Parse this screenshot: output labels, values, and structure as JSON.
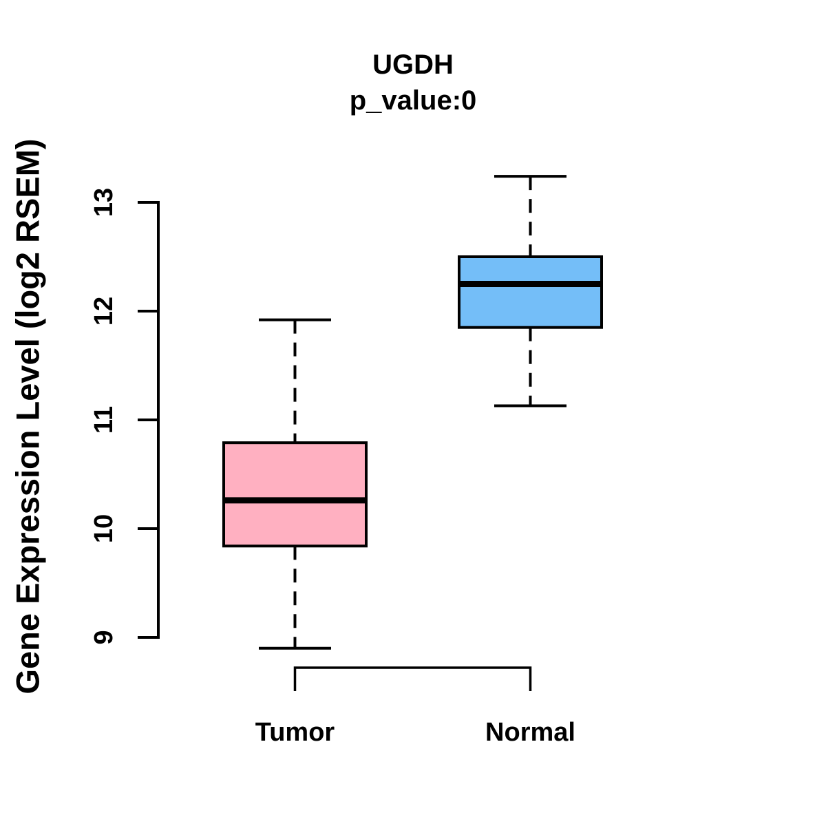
{
  "chart_data": {
    "type": "boxplot",
    "title": "UGDH",
    "subtitle": "p_value:0",
    "ylabel": "Gene Expression Level (log2 RSEM)",
    "xlabel": "",
    "categories": [
      "Tumor",
      "Normal"
    ],
    "y_ticks": [
      9,
      10,
      11,
      12,
      13
    ],
    "ylim": [
      8.6,
      13.4
    ],
    "grid": false,
    "legend": "none",
    "stroke_color": "#000000",
    "background_color": "#FFFFFF",
    "series": [
      {
        "name": "Tumor",
        "fill_color": "#FFB0C1",
        "stats": {
          "lower_whisker": 8.9,
          "q1": 9.84,
          "median": 10.26,
          "q3": 10.79,
          "upper_whisker": 11.92
        }
      },
      {
        "name": "Normal",
        "fill_color": "#74BEF8",
        "stats": {
          "lower_whisker": 11.13,
          "q1": 11.85,
          "median": 12.25,
          "q3": 12.5,
          "upper_whisker": 13.24
        }
      }
    ]
  }
}
